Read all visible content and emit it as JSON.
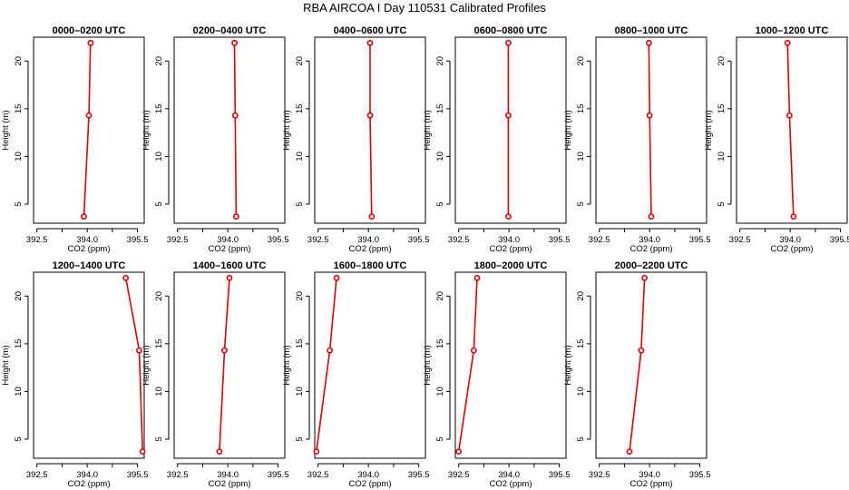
{
  "title": "RBA AIRCOA I  Day 110531  Calibrated Profiles",
  "chart_data": {
    "type": "line",
    "title": "RBA AIRCOA I  Day 110531  Calibrated Profiles",
    "xlabel": "CO2 (ppm)",
    "ylabel": "Height (m)",
    "xlim": [
      392.4,
      395.7
    ],
    "ylim": [
      3,
      22.5
    ],
    "xticks": [
      "392.5",
      "394.0",
      "395.5"
    ],
    "xticks_minor": [
      393.25,
      394.75
    ],
    "yticks": [
      "5",
      "10",
      "15",
      "20"
    ],
    "heights": [
      3.7,
      14.3,
      21.9
    ],
    "panels": [
      {
        "title": "0000–0200 UTC",
        "values": [
          393.9,
          394.05,
          394.1
        ]
      },
      {
        "title": "0200–0400 UTC",
        "values": [
          394.25,
          394.22,
          394.2
        ]
      },
      {
        "title": "0400–0600 UTC",
        "values": [
          394.1,
          394.05,
          394.05
        ]
      },
      {
        "title": "0600–0800 UTC",
        "values": [
          393.98,
          393.98,
          393.98
        ]
      },
      {
        "title": "0800–1000 UTC",
        "values": [
          394.05,
          394.0,
          393.98
        ]
      },
      {
        "title": "1000–1200 UTC",
        "values": [
          394.1,
          393.98,
          393.92
        ]
      },
      {
        "title": "1200–1400 UTC",
        "values": [
          395.65,
          395.55,
          395.15
        ]
      },
      {
        "title": "1400–1600 UTC",
        "values": [
          393.75,
          393.9,
          394.05
        ]
      },
      {
        "title": "1600–1800 UTC",
        "values": [
          392.45,
          392.85,
          393.05
        ]
      },
      {
        "title": "1800–2000 UTC",
        "values": [
          392.5,
          392.95,
          393.05
        ]
      },
      {
        "title": "2000–2200 UTC",
        "values": [
          393.4,
          393.75,
          393.85
        ]
      }
    ]
  }
}
